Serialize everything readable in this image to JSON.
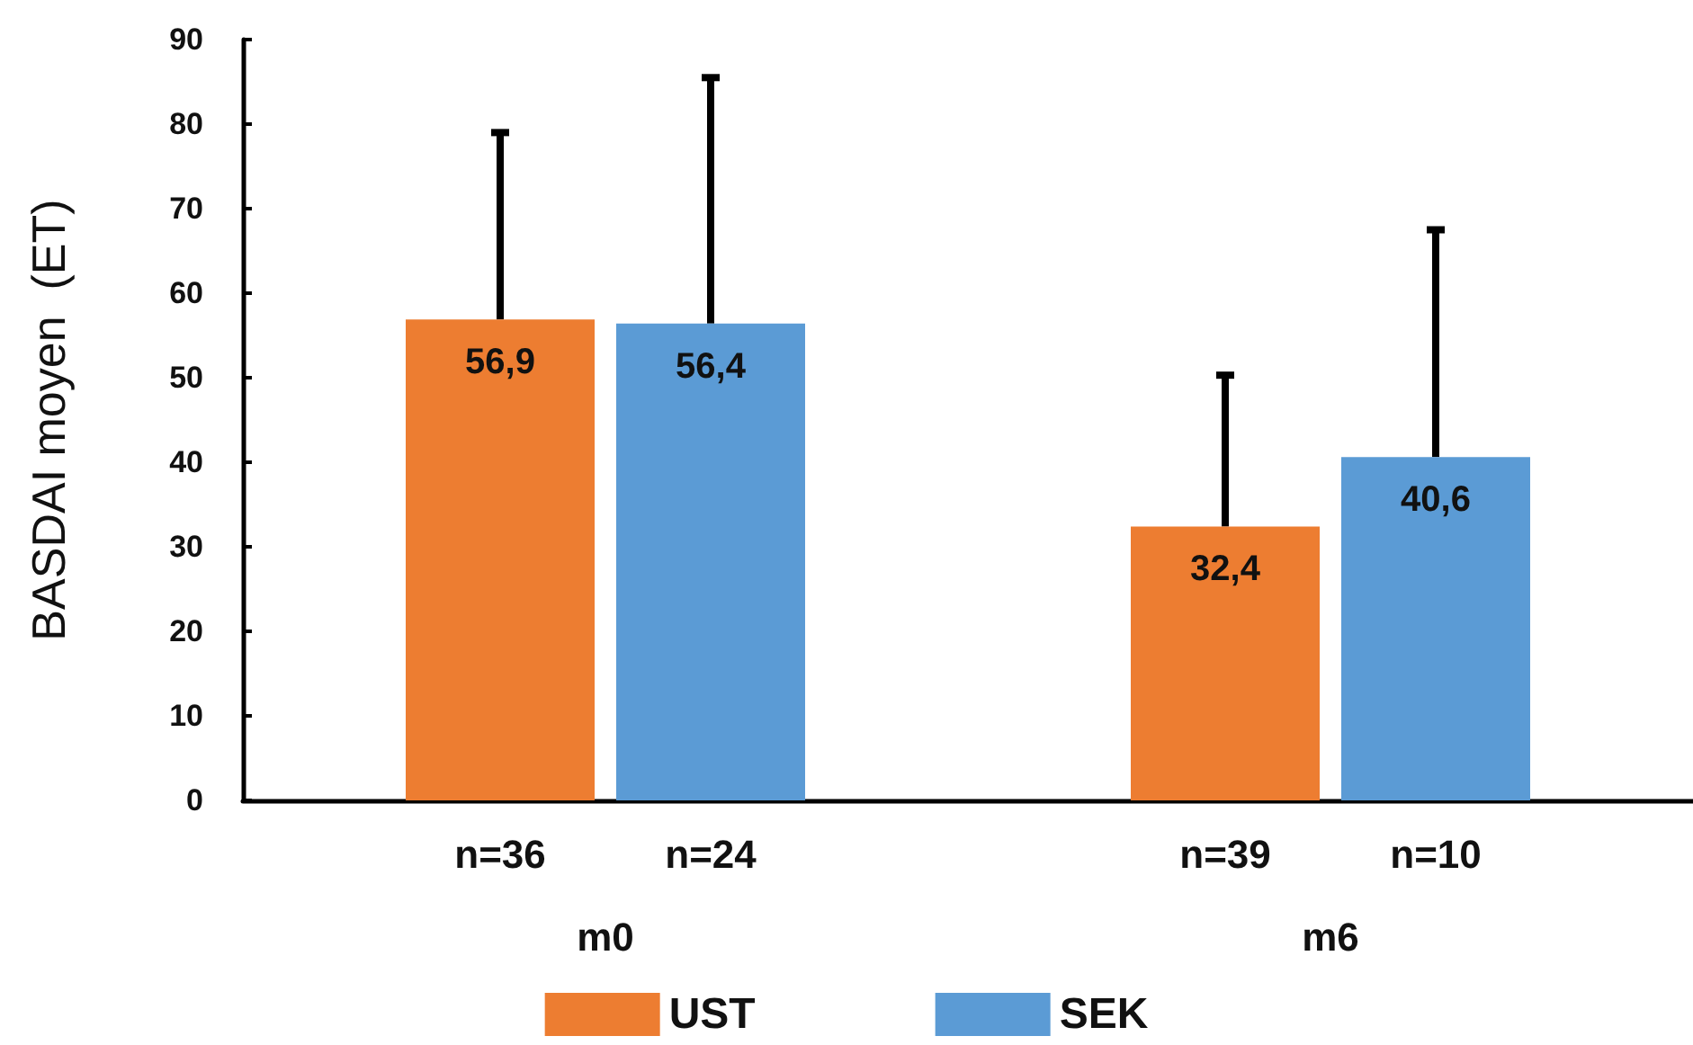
{
  "chart_data": {
    "type": "bar",
    "ylabel": "BASDAI moyen  (ET)",
    "categories": [
      "m0",
      "m6"
    ],
    "series": [
      {
        "name": "UST",
        "color": "#ed7d31",
        "values": [
          56.9,
          32.4
        ],
        "errors": [
          [
            56.9,
            79
          ],
          [
            32.4,
            50.3
          ]
        ],
        "value_labels": [
          "56,9",
          "32,4"
        ]
      },
      {
        "name": "SEK",
        "color": "#5b9bd5",
        "values": [
          56.4,
          40.6
        ],
        "errors": [
          [
            56.4,
            85.5
          ],
          [
            40.6,
            67.5
          ]
        ],
        "value_labels": [
          "56,4",
          "40,6"
        ]
      }
    ],
    "annotations": [
      "n=36",
      "n=24",
      "n=39",
      "n=10"
    ],
    "ylim": [
      0,
      90
    ],
    "yticks": [
      0,
      10,
      20,
      30,
      40,
      50,
      60,
      70,
      80,
      90
    ],
    "grid": false,
    "legend": "bottom"
  }
}
